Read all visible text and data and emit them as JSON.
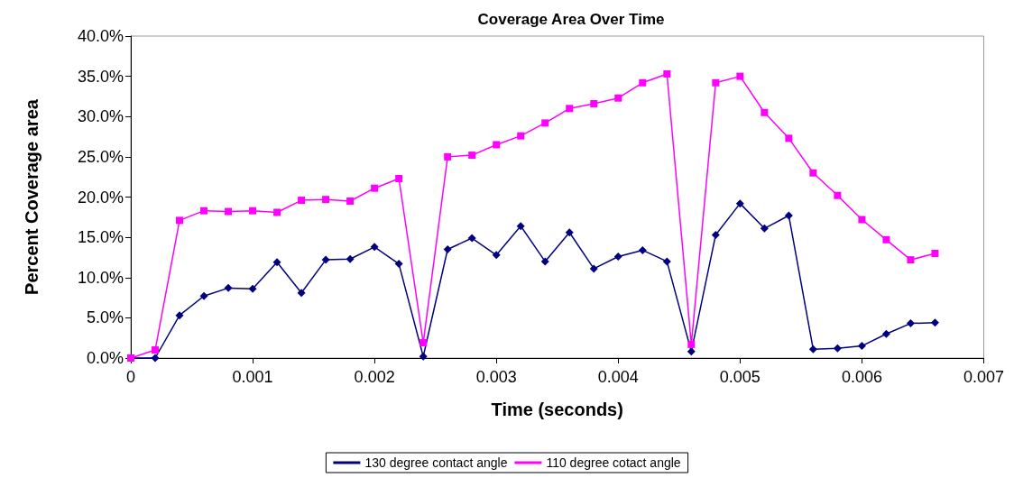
{
  "chart_data": {
    "type": "line",
    "title": "Coverage Area Over Time",
    "xlabel": "Time (seconds)",
    "ylabel": "Percent Coverage area",
    "x": [
      0,
      0.0002,
      0.0004,
      0.0006,
      0.0008,
      0.001,
      0.0012,
      0.0014,
      0.0016,
      0.0018,
      0.002,
      0.0022,
      0.0024,
      0.0026,
      0.0028,
      0.003,
      0.0032,
      0.0034,
      0.0036,
      0.0038,
      0.004,
      0.0042,
      0.0044,
      0.0046,
      0.0048,
      0.005,
      0.0052,
      0.0054,
      0.0056,
      0.0058,
      0.006,
      0.0062,
      0.0064,
      0.0066
    ],
    "series": [
      {
        "name": "130 degree contact angle",
        "color": "#000080",
        "marker": "diamond",
        "values": [
          0,
          0,
          5.3,
          7.7,
          8.7,
          8.6,
          11.9,
          8.1,
          12.2,
          12.3,
          13.8,
          11.7,
          0.2,
          13.5,
          14.9,
          12.8,
          16.4,
          12.0,
          15.6,
          11.1,
          12.6,
          13.4,
          12.0,
          0.8,
          15.3,
          19.2,
          16.1,
          17.7,
          1.1,
          1.2,
          1.5,
          3.0,
          4.3,
          4.4
        ]
      },
      {
        "name": "110 degree cotact angle",
        "color": "#ff00ff",
        "marker": "square",
        "values": [
          0,
          1.0,
          17.1,
          18.3,
          18.2,
          18.3,
          18.1,
          19.6,
          19.7,
          19.5,
          21.1,
          22.3,
          1.9,
          25.0,
          25.2,
          26.5,
          27.6,
          29.2,
          31.0,
          31.6,
          32.3,
          34.2,
          35.3,
          1.7,
          34.2,
          35.0,
          30.5,
          27.3,
          23.0,
          20.2,
          17.2,
          14.7,
          12.2,
          13.0
        ]
      }
    ],
    "xlim": [
      0,
      0.007
    ],
    "xticks": [
      0,
      0.001,
      0.002,
      0.003,
      0.004,
      0.005,
      0.006,
      0.007
    ],
    "ylim": [
      0,
      40
    ],
    "yticks": [
      {
        "value": 0,
        "label": "0.0%"
      },
      {
        "value": 5,
        "label": "5.0%"
      },
      {
        "value": 10,
        "label": "10.0%"
      },
      {
        "value": 15,
        "label": "15.0%"
      },
      {
        "value": 20,
        "label": "20.0%"
      },
      {
        "value": 25,
        "label": "25.0%"
      },
      {
        "value": 30,
        "label": "30.0%"
      },
      {
        "value": 35,
        "label": "35.0%"
      },
      {
        "value": 40,
        "label": "40.0%"
      }
    ],
    "grid": false,
    "legend": "bottom"
  }
}
